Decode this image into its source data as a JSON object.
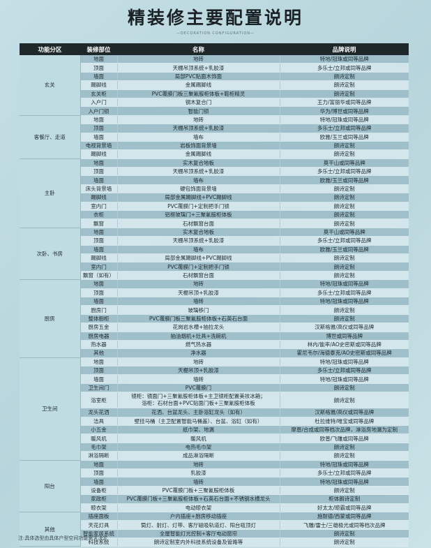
{
  "title": "精装修主要配置说明",
  "subtitle": "—DECORATION CONFIGURATION—",
  "headers": [
    "功能分区",
    "装修部位",
    "名称",
    "品牌说明"
  ],
  "zones": [
    {
      "name": "玄关",
      "rows": [
        [
          "地面",
          "地砖",
          "特地/冠珠或同等品牌"
        ],
        [
          "顶面",
          "天棚吊顶系统+乳胶漆",
          "多乐士/立邦或同等品牌"
        ],
        [
          "墙面",
          "局部PVC贴面木饰面",
          "朗诗定制"
        ],
        [
          "踢脚线",
          "金属踢脚线",
          "朗诗定制"
        ],
        [
          "玄关柜",
          "PVC覆膜门板三聚氰胺柜体板+鞋柜精灵",
          "朗诗定制"
        ],
        [
          "入户门",
          "钢木复合门",
          "王力/富丽华或同等品牌"
        ],
        [
          "入户门锁",
          "智能门锁",
          "华为/博世或同等品牌"
        ]
      ]
    },
    {
      "name": "客餐厅、走道",
      "rows": [
        [
          "地面",
          "地砖",
          "特地/冠珠或同等品牌"
        ],
        [
          "顶面",
          "天棚吊顶系统+乳胶漆",
          "多乐士/立邦或同等品牌"
        ],
        [
          "墙面",
          "墙布",
          "欧雅/玉兰或同等品牌"
        ],
        [
          "电视背景墙",
          "岩板饰面背景墙",
          "朗诗定制"
        ],
        [
          "踢脚线",
          "金属踢脚线",
          "朗诗定制"
        ]
      ]
    },
    {
      "name": "主卧",
      "rows": [
        [
          "地面",
          "实木复合地板",
          "莫干山或同等品牌"
        ],
        [
          "顶面",
          "天棚吊顶系统+乳胶漆",
          "多乐士/立邦或同等品牌"
        ],
        [
          "墙面",
          "墙布",
          "欧雅/玉兰或同等品牌"
        ],
        [
          "床头背景墙",
          "硬包饰面背景墙",
          "朗诗定制"
        ],
        [
          "踢脚线",
          "局部金属踢脚线+PVC踢脚线",
          "朗诗定制"
        ],
        [
          "室内门",
          "PVC覆膜门+定制把手门锁",
          "朗诗定制"
        ],
        [
          "衣柜",
          "铝框玻璃门+三聚氰胺柜体板",
          "朗诗定制"
        ],
        [
          "飘窗",
          "石材飘窗台面",
          "朗诗定制"
        ]
      ]
    },
    {
      "name": "次卧、书房",
      "rows": [
        [
          "地面",
          "实木复合地板",
          "莫干山或同等品牌"
        ],
        [
          "顶面",
          "天棚吊顶系统+乳胶漆",
          "多乐士/立邦或同等品牌"
        ],
        [
          "墙面",
          "墙布",
          "欧雅/玉兰或同等品牌"
        ],
        [
          "踢脚线",
          "局部金属踢脚线+PVC踢脚线",
          "朗诗定制"
        ],
        [
          "室内门",
          "PVC覆膜门+定制把手门锁",
          "朗诗定制"
        ],
        [
          "飘窗（如有）",
          "石材飘窗台面",
          "朗诗定制"
        ]
      ]
    },
    {
      "name": "厨房",
      "rows": [
        [
          "地面",
          "地砖",
          "特地/冠珠或同等品牌"
        ],
        [
          "顶面",
          "天棚吊顶+乳胶漆",
          "多乐士/立邦或同等品牌"
        ],
        [
          "墙面",
          "墙砖",
          "特地/冠珠或同等品牌"
        ],
        [
          "厨房门",
          "玻璃移门",
          "朗诗定制"
        ],
        [
          "整体橱柜",
          "PVC覆膜门板三聚氰胺柜体板+石英石台面",
          "朗诗定制"
        ],
        [
          "厨房五金",
          "花岗岩水槽+抽拉龙头",
          "汉斯格雅/高仪或同等品牌"
        ],
        [
          "厨房电器",
          "抽油烟机+灶具+洗碗机",
          "博世或同等品牌"
        ],
        [
          "热水器",
          "燃气热水器",
          "林内/能率/AO史密斯或同等品牌"
        ],
        [
          "其他",
          "净水器",
          "霍尼韦尔/海德泰克/AO史密斯或同等品牌"
        ]
      ]
    },
    {
      "name": "卫生间",
      "rows": [
        [
          "地面",
          "地砖",
          "特地/冠珠或同等品牌"
        ],
        [
          "顶面",
          "天棚吊顶+乳胶漆",
          "多乐士/立邦或同等品牌"
        ],
        [
          "墙面",
          "墙砖",
          "特地/冠珠或同等品牌"
        ],
        [
          "卫生间门",
          "PVC覆膜门",
          "朗诗定制"
        ],
        [
          "浴室柜",
          "镜柜：镜面门+三聚氰胺柜体板+主卫镜柜配置美妆冰箱；\n浴柜：石材台面+PVC贴面门板+三聚氰胺柜体板",
          "朗诗定制"
        ],
        [
          "龙头花洒",
          "花洒、台盆龙头、主卧浴缸龙头（如有）",
          "汉斯格雅/高仪或同等品牌"
        ],
        [
          "洁具",
          "壁挂马桶（主卫配置智能马桶盖）、台盆、浴缸（如有）",
          "杜拉维特/唯宝或同等品牌"
        ],
        [
          "小五金",
          "纸巾架、地漏",
          "摩恩/合成或同等档次品牌，淋浴房地漏为定制"
        ],
        [
          "暖风机",
          "暖风机",
          "欧普/飞雕或同等品牌"
        ],
        [
          "毛巾架",
          "电热毛巾架",
          "朗诗定制"
        ],
        [
          "淋浴隔断",
          "成品淋浴隔断",
          "朗诗定制"
        ]
      ]
    },
    {
      "name": "阳台",
      "rows": [
        [
          "地面",
          "地砖",
          "特地/冠珠或同等品牌"
        ],
        [
          "顶面",
          "乳胶漆",
          "多乐士/立邦或同等品牌"
        ],
        [
          "墙面",
          "墙砖",
          "特地/冠珠或同等品牌"
        ],
        [
          "设备柜",
          "PVC覆膜门板+三聚氰胺柜体板",
          "朗诗定制"
        ],
        [
          "家政柜",
          "PVC覆膜门板+三聚氰胺柜体板+石英石台面+不锈钢水槽龙头",
          "柜体朗诗定制"
        ],
        [
          "晾衣架",
          "电动晾衣架",
          "好太太/晾霸或同等品牌"
        ]
      ]
    },
    {
      "name": "其他",
      "rows": [
        [
          "插座面板",
          "户内插座+厨房移动插座",
          "施耐德/西蒙或同等品牌"
        ],
        [
          "天花灯具",
          "筒灯、射灯、灯带、客厅磁吸轨道灯、阳台吸顶灯",
          "飞雕/雷士/三雄极光或同等档次品牌"
        ],
        [
          "智能家居系统",
          "全屋智能灯光控制+客厅电动窗帘",
          "朗诗定制"
        ],
        [
          "科技系统",
          "朗诗定制室内外科技系统设备及管路等",
          "朗诗定制"
        ]
      ]
    }
  ],
  "note": "注:具体选型由具体户型空间功能需求决定"
}
